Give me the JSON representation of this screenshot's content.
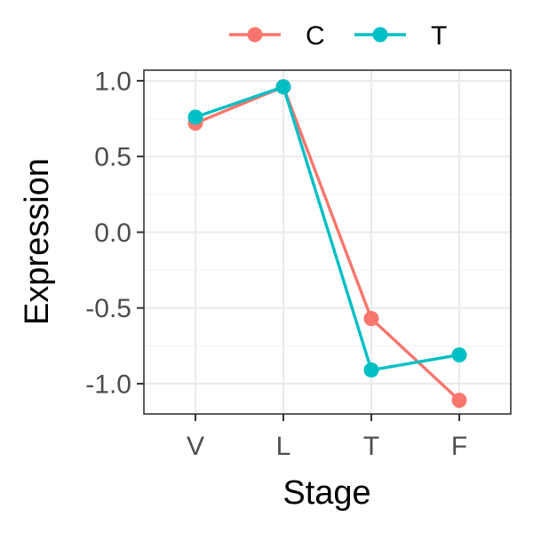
{
  "chart_data": {
    "type": "line",
    "categories": [
      "V",
      "L",
      "T",
      "F"
    ],
    "series": [
      {
        "name": "C",
        "values": [
          0.72,
          0.96,
          -0.57,
          -1.11
        ],
        "color": "#F8766D"
      },
      {
        "name": "T",
        "values": [
          0.76,
          0.96,
          -0.91,
          -0.81
        ],
        "color": "#00BFC4"
      }
    ],
    "xlabel": "Stage",
    "ylabel": "Expression",
    "ylim": [
      -1.2,
      1.07
    ],
    "y_ticks": [
      1.0,
      0.5,
      0.0,
      -0.5,
      -1.0
    ],
    "y_tick_labels": [
      "1.0",
      "0.5",
      "0.0",
      "-0.5",
      "-1.0"
    ],
    "grid": true,
    "legend_position": "top"
  }
}
